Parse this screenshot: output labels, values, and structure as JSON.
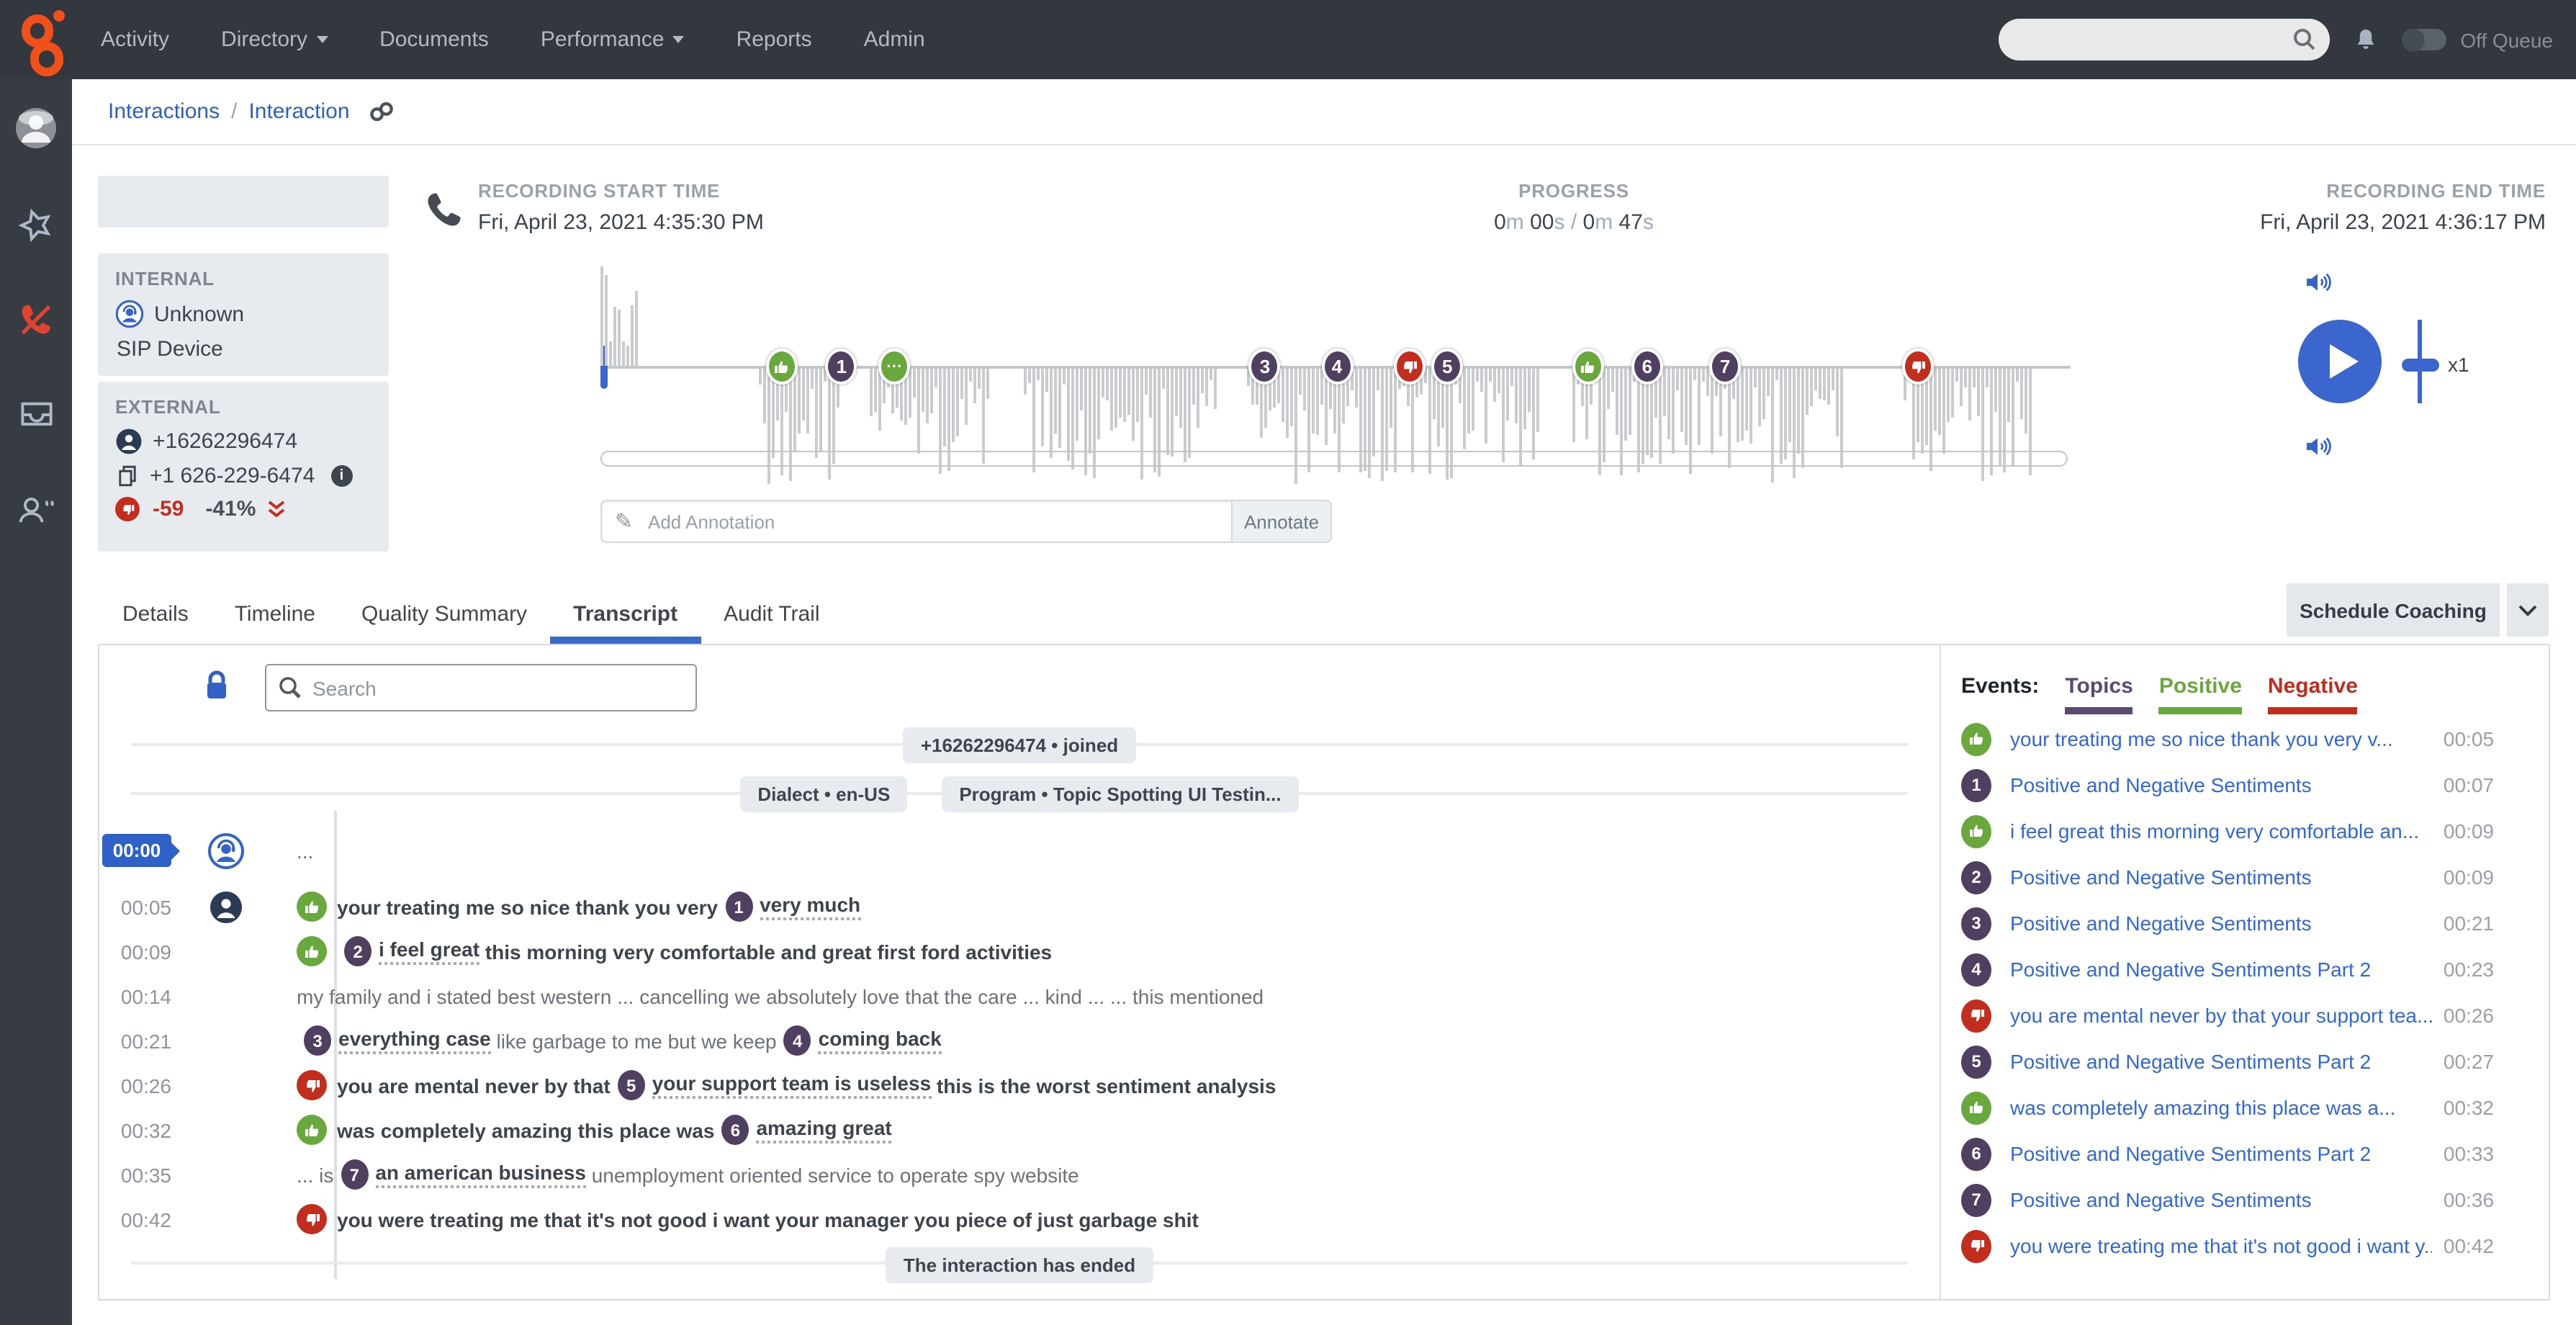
{
  "nav": {
    "items": [
      "Activity",
      "Directory",
      "Documents",
      "Performance",
      "Reports",
      "Admin"
    ],
    "off_queue_label": "Off Queue"
  },
  "breadcrumb": {
    "parent": "Interactions",
    "current": "Interaction"
  },
  "parties": {
    "internal": {
      "label": "INTERNAL",
      "name": "Unknown",
      "device": "SIP Device"
    },
    "external": {
      "label": "EXTERNAL",
      "number": "+16262296474",
      "formatted": "+1 626-229-6474",
      "sentiment_score": "-59",
      "sentiment_trend": "-41%"
    }
  },
  "recording": {
    "start_label": "RECORDING START TIME",
    "start_value": "Fri, April 23, 2021 4:35:30 PM",
    "progress_label": "PROGRESS",
    "progress": {
      "elapsed_m": "0",
      "elapsed_s": "00",
      "total_m": "0",
      "total_s": "47",
      "unit_m": "m",
      "unit_s": "s",
      "sep": "/"
    },
    "end_label": "RECORDING END TIME",
    "end_value": "Fri, April 23, 2021 4:36:17 PM",
    "speed": "x1"
  },
  "annotation": {
    "placeholder": "Add Annotation",
    "button": "Annotate"
  },
  "tabs": {
    "items": [
      "Details",
      "Timeline",
      "Quality Summary",
      "Transcript",
      "Audit Trail"
    ],
    "active": "Transcript"
  },
  "coaching": {
    "label": "Schedule Coaching"
  },
  "waveform": {
    "markers": [
      {
        "type": "pos",
        "pct": 12.3
      },
      {
        "type": "badge",
        "n": "1",
        "pct": 16.4
      },
      {
        "type": "dots",
        "n": "...",
        "pct": 20.0
      },
      {
        "type": "badge",
        "n": "3",
        "pct": 45.2
      },
      {
        "type": "badge",
        "n": "4",
        "pct": 50.1
      },
      {
        "type": "neg",
        "pct": 55.0
      },
      {
        "type": "badge",
        "n": "5",
        "pct": 57.6
      },
      {
        "type": "pos",
        "pct": 67.2
      },
      {
        "type": "badge",
        "n": "6",
        "pct": 71.2
      },
      {
        "type": "badge",
        "n": "7",
        "pct": 76.5
      },
      {
        "type": "neg",
        "pct": 89.6
      }
    ]
  },
  "transcript": {
    "search_placeholder": "Search",
    "joined_chip": "+16262296474 • joined",
    "dialect_chip": "Dialect • en-US",
    "program_chip": "Program • Topic Spotting UI Testin...",
    "ended_chip": "The interaction has ended",
    "rows": [
      {
        "time": "00:00",
        "active": true,
        "avatar": "agent",
        "segments": [
          {
            "t": "text",
            "text": "..."
          }
        ]
      },
      {
        "time": "00:05",
        "avatar": "customer",
        "segments": [
          {
            "t": "pos"
          },
          {
            "t": "text",
            "bold": true,
            "text": "your treating me so nice thank you very"
          },
          {
            "t": "badge",
            "n": "1"
          },
          {
            "t": "text",
            "bold": true,
            "underline": true,
            "text": "very much"
          }
        ]
      },
      {
        "time": "00:09",
        "segments": [
          {
            "t": "pos"
          },
          {
            "t": "badge",
            "n": "2"
          },
          {
            "t": "text",
            "bold": true,
            "underline": true,
            "text": "i feel great"
          },
          {
            "t": "text",
            "bold": true,
            "text": " this morning very comfortable and great first ford activities"
          }
        ]
      },
      {
        "time": "00:14",
        "segments": [
          {
            "t": "text",
            "text": "my family and i stated best western ... cancelling we absolutely love that the care ... kind ... ... this mentioned"
          }
        ]
      },
      {
        "time": "00:21",
        "segments": [
          {
            "t": "badge",
            "n": "3"
          },
          {
            "t": "text",
            "bold": true,
            "underline": true,
            "text": "everything case"
          },
          {
            "t": "text",
            "text": " like garbage to me but we keep"
          },
          {
            "t": "badge",
            "n": "4"
          },
          {
            "t": "text",
            "bold": true,
            "underline": true,
            "text": "coming back"
          }
        ]
      },
      {
        "time": "00:26",
        "segments": [
          {
            "t": "neg"
          },
          {
            "t": "text",
            "bold": true,
            "text": "you are mental never by that"
          },
          {
            "t": "badge",
            "n": "5"
          },
          {
            "t": "text",
            "bold": true,
            "underline": true,
            "text": "your support team is useless"
          },
          {
            "t": "text",
            "bold": true,
            "text": " this is the worst sentiment analysis"
          }
        ]
      },
      {
        "time": "00:32",
        "segments": [
          {
            "t": "pos"
          },
          {
            "t": "text",
            "bold": true,
            "text": "was completely amazing this place was"
          },
          {
            "t": "badge",
            "n": "6"
          },
          {
            "t": "text",
            "bold": true,
            "underline": true,
            "text": "amazing great"
          }
        ]
      },
      {
        "time": "00:35",
        "segments": [
          {
            "t": "text",
            "text": "... is"
          },
          {
            "t": "badge",
            "n": "7"
          },
          {
            "t": "text",
            "bold": true,
            "underline": true,
            "text": "an american business"
          },
          {
            "t": "text",
            "text": " unemployment oriented service to operate spy website"
          }
        ]
      },
      {
        "time": "00:42",
        "segments": [
          {
            "t": "neg"
          },
          {
            "t": "text",
            "bold": true,
            "text": "you were treating me that it's not good i want your manager you piece of just garbage shit"
          }
        ]
      }
    ]
  },
  "events": {
    "label": "Events:",
    "filters": [
      {
        "label": "Topics"
      },
      {
        "label": "Positive"
      },
      {
        "label": "Negative"
      }
    ],
    "items": [
      {
        "icon": "pos",
        "text": "your treating me so nice thank you very v...",
        "time": "00:05"
      },
      {
        "icon": "badge",
        "n": "1",
        "text": "Positive and Negative Sentiments",
        "time": "00:07"
      },
      {
        "icon": "pos",
        "text": "i feel great this morning very comfortable an...",
        "time": "00:09"
      },
      {
        "icon": "badge",
        "n": "2",
        "text": "Positive and Negative Sentiments",
        "time": "00:09"
      },
      {
        "icon": "badge",
        "n": "3",
        "text": "Positive and Negative Sentiments",
        "time": "00:21"
      },
      {
        "icon": "badge",
        "n": "4",
        "text": "Positive and Negative Sentiments Part 2",
        "time": "00:23"
      },
      {
        "icon": "neg",
        "text": "you are mental never by that your support tea...",
        "time": "00:26"
      },
      {
        "icon": "badge",
        "n": "5",
        "text": "Positive and Negative Sentiments Part 2",
        "time": "00:27"
      },
      {
        "icon": "pos",
        "text": "was completely amazing this place was a...",
        "time": "00:32"
      },
      {
        "icon": "badge",
        "n": "6",
        "text": "Positive and Negative Sentiments Part 2",
        "time": "00:33"
      },
      {
        "icon": "badge",
        "n": "7",
        "text": "Positive and Negative Sentiments",
        "time": "00:36"
      },
      {
        "icon": "neg",
        "text": "you were treating me that it's not good i want y...",
        "time": "00:42"
      }
    ]
  },
  "colors": {
    "accent_blue": "#3b66cd",
    "positive_green": "#69a83d",
    "negative_red": "#c22d1e",
    "topic_purple": "#4f3f60",
    "nav_bg": "#33383e"
  },
  "icons": {
    "nav_search": "magnifier",
    "alerts": "bell",
    "rail": [
      "user-avatar",
      "favorites-star",
      "phone-disconnect",
      "inbox-tray",
      "customer-speaking",
      "help"
    ],
    "breadcrumb_link": "chain",
    "recording": "phone-receiver",
    "annotation": "pencil",
    "transcript_lock": "lock",
    "sentiment_positive": "thumb-up",
    "sentiment_negative": "thumb-down"
  }
}
